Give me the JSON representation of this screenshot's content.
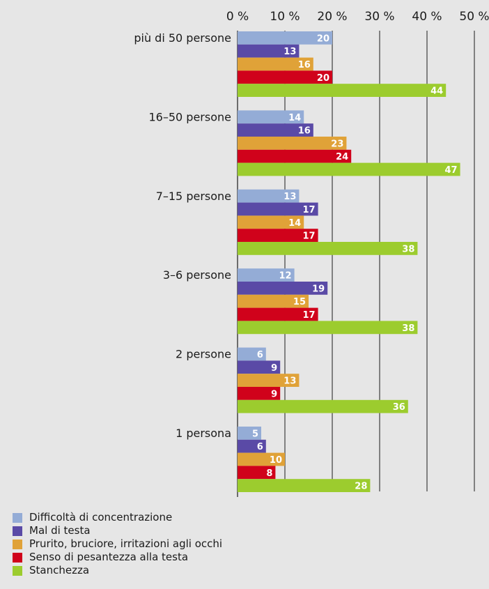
{
  "chart_data": {
    "type": "bar",
    "orientation": "horizontal",
    "categories": [
      "più di 50 persone",
      "16–50 persone",
      "7–15 persone",
      "3–6 persone",
      "2 persone",
      "1 persona"
    ],
    "series": [
      {
        "name": "Difficoltà di concentrazione",
        "color": "#94acd6",
        "values": [
          20,
          14,
          13,
          12,
          6,
          5
        ]
      },
      {
        "name": "Mal di testa",
        "color": "#5a4aa6",
        "values": [
          13,
          16,
          17,
          19,
          9,
          6
        ]
      },
      {
        "name": "Prurito, bruciore, irritazioni agli occhi",
        "color": "#e0a238",
        "values": [
          16,
          23,
          14,
          15,
          13,
          10
        ]
      },
      {
        "name": "Senso di pesantezza alla testa",
        "color": "#d0021b",
        "values": [
          20,
          24,
          17,
          17,
          9,
          8
        ]
      },
      {
        "name": "Stanchezza",
        "color": "#9ccc2e",
        "values": [
          44,
          47,
          38,
          38,
          36,
          28
        ]
      }
    ],
    "xlim": [
      0,
      50
    ],
    "xticks": [
      "0 %",
      "10 %",
      "20 %",
      "30 %",
      "40 %",
      "50 %"
    ],
    "xlabel": "",
    "ylabel": "",
    "title": "",
    "grid": true,
    "legend_position": "bottom-left"
  }
}
